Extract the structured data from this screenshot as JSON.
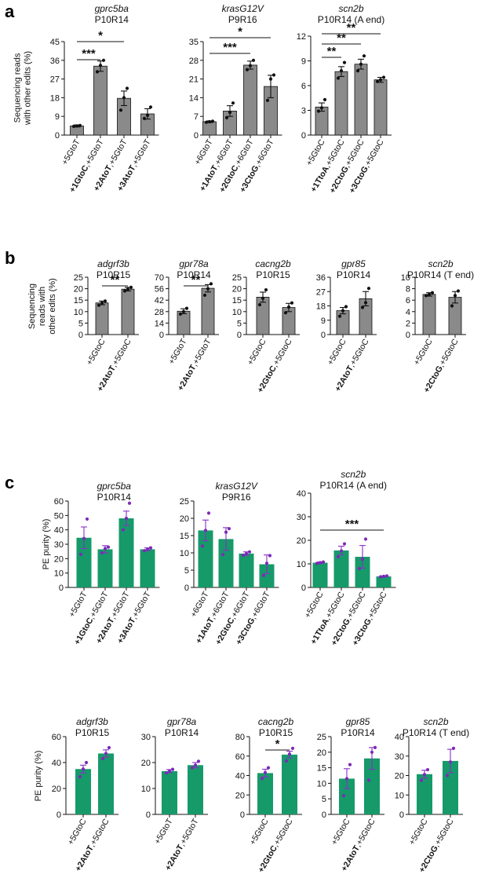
{
  "panels": [
    "a",
    "b",
    "c"
  ],
  "ylabels": {
    "a": [
      "Sequencing reads",
      "with other edits (%)"
    ],
    "b": [
      "Sequencing",
      "reads with",
      "other edits (%)"
    ],
    "c": [
      "PE purity (%)"
    ],
    "c2": [
      "PE purity (%)"
    ]
  },
  "colors": {
    "gray": "#8a8a8a",
    "green": "#169a69",
    "dot": "#111111",
    "purple": "#8a2ec9",
    "green_dot": "#7d2ab8"
  },
  "chart_data": [
    {
      "id": "a1",
      "type": "bar",
      "title": "gprc5ba",
      "subtitle": "P10R14",
      "categories": [
        [
          "+5GtoT",
          ""
        ],
        [
          "+1GtoC",
          ",+5GtoT"
        ],
        [
          "+2AtoT",
          ",+5GtoT"
        ],
        [
          "+3AtoT",
          ",+5GtoT"
        ]
      ],
      "values": [
        4.4,
        33.2,
        17.7,
        10.2
      ],
      "errors": [
        0.5,
        2.5,
        3.5,
        2.5
      ],
      "points": [
        [
          4.2,
          4.4,
          4.6
        ],
        [
          30.5,
          33.5,
          36.0
        ],
        [
          12.0,
          18.0,
          22.5
        ],
        [
          8.0,
          9.5,
          13.5
        ]
      ],
      "ylim": [
        0,
        45
      ],
      "yticks": [
        0,
        9,
        18,
        27,
        36,
        45
      ],
      "significance": [
        {
          "from": 0,
          "to": 1,
          "label": "***"
        },
        {
          "from": 0,
          "to": 2,
          "label": "*"
        }
      ]
    },
    {
      "id": "a2",
      "type": "bar",
      "title": "krasG12V",
      "subtitle": "P9R16",
      "categories": [
        [
          "+6GtoT",
          ""
        ],
        [
          "+1AtoT",
          ",+6GtoT"
        ],
        [
          "+2GtoC",
          ",+6GtoT"
        ],
        [
          "+3CtoG",
          ",+6GtoT"
        ]
      ],
      "values": [
        5.0,
        9.0,
        26.2,
        18.2
      ],
      "errors": [
        0.3,
        2.0,
        1.5,
        4.2
      ],
      "points": [
        [
          4.8,
          5.0,
          5.2
        ],
        [
          6.5,
          8.5,
          12.0
        ],
        [
          24.5,
          26.0,
          28.0
        ],
        [
          13.0,
          21.0,
          22.5
        ]
      ],
      "ylim": [
        0,
        35
      ],
      "yticks": [
        0,
        7,
        14,
        21,
        28,
        35
      ],
      "significance": [
        {
          "from": 0,
          "to": 2,
          "label": "***"
        },
        {
          "from": 0,
          "to": 3,
          "label": "*"
        }
      ]
    },
    {
      "id": "a3",
      "type": "bar",
      "title": "scn2b",
      "subtitle": "P10R14 (A end)",
      "categories": [
        [
          "+5GtoC",
          ""
        ],
        [
          "+1TtoA",
          ",+5GtoC"
        ],
        [
          "+2CtoG",
          ",+5GtoC"
        ],
        [
          "+3CtoG",
          ",+5GtoC"
        ]
      ],
      "values": [
        3.4,
        7.7,
        8.6,
        6.7
      ],
      "errors": [
        0.5,
        0.6,
        0.6,
        0.3
      ],
      "points": [
        [
          2.9,
          3.3,
          4.3
        ],
        [
          6.9,
          7.8,
          8.8
        ],
        [
          7.8,
          8.6,
          9.6
        ],
        [
          6.5,
          6.7,
          7.0
        ]
      ],
      "ylim": [
        0,
        12
      ],
      "yticks": [
        0,
        3,
        6,
        9,
        12
      ],
      "significance": [
        {
          "from": 0,
          "to": 1,
          "label": "**"
        },
        {
          "from": 0,
          "to": 2,
          "label": "**"
        },
        {
          "from": 0,
          "to": 3,
          "label": "**"
        }
      ]
    },
    {
      "id": "b1",
      "type": "bar",
      "title": "adgrf3b",
      "subtitle": "P10R15",
      "categories": [
        [
          "+5GtoC",
          ""
        ],
        [
          "+2AtoT",
          ",+5GtoC"
        ]
      ],
      "values": [
        13.8,
        19.8
      ],
      "errors": [
        0.8,
        0.8
      ],
      "points": [
        [
          12.8,
          13.8,
          14.6
        ],
        [
          19.0,
          19.8,
          20.6
        ]
      ],
      "ylim": [
        0,
        25
      ],
      "yticks": [
        0,
        5,
        10,
        15,
        20,
        25
      ],
      "significance": [
        {
          "from": 0,
          "to": 1,
          "label": "**"
        }
      ]
    },
    {
      "id": "b2",
      "type": "bar",
      "title": "gpr78a",
      "subtitle": "P10R14",
      "categories": [
        [
          "+5GtoT",
          ""
        ],
        [
          "+2AtoT",
          ",+5GtoT"
        ]
      ],
      "values": [
        28.5,
        56.5
      ],
      "errors": [
        3.0,
        4.5
      ],
      "points": [
        [
          25.0,
          28.0,
          32.0
        ],
        [
          48.0,
          56.0,
          62.0
        ]
      ],
      "ylim": [
        0,
        70
      ],
      "yticks": [
        0,
        14,
        28,
        42,
        56,
        70
      ],
      "significance": [
        {
          "from": 0,
          "to": 1,
          "label": "**"
        }
      ]
    },
    {
      "id": "b3",
      "type": "bar",
      "title": "cacng2b",
      "subtitle": "P10R15",
      "categories": [
        [
          "+5GtoC",
          ""
        ],
        [
          "+2GtoC",
          ",+5GtoC"
        ]
      ],
      "values": [
        16.3,
        11.8
      ],
      "errors": [
        2.2,
        1.8
      ],
      "points": [
        [
          13.0,
          15.8,
          19.5
        ],
        [
          9.5,
          12.0,
          13.8
        ]
      ],
      "ylim": [
        0,
        25
      ],
      "yticks": [
        0,
        5,
        10,
        15,
        20,
        25
      ],
      "significance": []
    },
    {
      "id": "b4",
      "type": "bar",
      "title": "gpr85",
      "subtitle": "P10R14",
      "categories": [
        [
          "+5GtoC",
          ""
        ],
        [
          "+2AtoT",
          ",+5GtoC"
        ]
      ],
      "values": [
        15.0,
        22.5
      ],
      "errors": [
        2.0,
        4.5
      ],
      "points": [
        [
          11.5,
          15.0,
          17.5
        ],
        [
          17.0,
          20.0,
          29.0
        ]
      ],
      "ylim": [
        0,
        36
      ],
      "yticks": [
        0,
        9,
        18,
        27,
        36
      ],
      "significance": []
    },
    {
      "id": "b5",
      "type": "bar",
      "title": "scn2b",
      "subtitle": "P10R14 (T end)",
      "categories": [
        [
          "+5GtoC",
          ""
        ],
        [
          "+2CtoG",
          ",+5GtoC"
        ]
      ],
      "values": [
        7.0,
        6.5
      ],
      "errors": [
        0.3,
        1.0
      ],
      "points": [
        [
          6.8,
          7.0,
          7.3
        ],
        [
          5.0,
          6.8,
          7.6
        ]
      ],
      "ylim": [
        0,
        10
      ],
      "yticks": [
        0,
        2,
        4,
        6,
        8,
        10
      ],
      "significance": []
    },
    {
      "id": "c1",
      "type": "bar",
      "title": "gprc5ba",
      "subtitle": "P10R14",
      "categories": [
        [
          "+5GtoT",
          ""
        ],
        [
          "+1GtoC",
          ",+5GtoT"
        ],
        [
          "+2AtoT",
          ",+5GtoT"
        ],
        [
          "+3AtoT",
          ",+5GtoT"
        ]
      ],
      "values": [
        34.5,
        26.5,
        48.0,
        26.5
      ],
      "errors": [
        7.5,
        2.5,
        5.0,
        1.0
      ],
      "points": [
        [
          23.0,
          34.0,
          47.5
        ],
        [
          24.0,
          27.0,
          28.0
        ],
        [
          40.0,
          48.0,
          58.5
        ],
        [
          25.5,
          26.5,
          27.5
        ]
      ],
      "ylim": [
        0,
        60
      ],
      "yticks": [
        0,
        10,
        20,
        30,
        40,
        50,
        60
      ],
      "significance": []
    },
    {
      "id": "c2",
      "type": "bar",
      "title": "krasG12V",
      "subtitle": "P9R16",
      "categories": [
        [
          "+6GtoT",
          ""
        ],
        [
          "+1AtoT",
          ",+6GtoT"
        ],
        [
          "+2GtoC",
          ",+6GtoT"
        ],
        [
          "+3CtoG",
          ",+6GtoT"
        ]
      ],
      "values": [
        16.5,
        14.0,
        9.8,
        6.7
      ],
      "errors": [
        3.0,
        3.3,
        0.5,
        2.7
      ],
      "points": [
        [
          12.0,
          16.5,
          21.5
        ],
        [
          9.5,
          16.0,
          17.0
        ],
        [
          9.3,
          9.8,
          10.3
        ],
        [
          3.5,
          7.0,
          9.2
        ]
      ],
      "ylim": [
        0,
        25
      ],
      "yticks": [
        0,
        5,
        10,
        15,
        20,
        25
      ],
      "significance": []
    },
    {
      "id": "c3",
      "type": "bar",
      "title": "scn2b",
      "subtitle": "P10R14 (A end)",
      "categories": [
        [
          "+5GtoC",
          ""
        ],
        [
          "+1TtoA",
          ",+5GtoC"
        ],
        [
          "+2CtoG",
          ",+5GtoC"
        ],
        [
          "+3CtoG",
          ",+5GtoC"
        ]
      ],
      "values": [
        10.5,
        15.7,
        13.0,
        4.7
      ],
      "errors": [
        0.3,
        1.8,
        4.8,
        0.2
      ],
      "points": [
        [
          10.2,
          10.5,
          10.8
        ],
        [
          13.0,
          15.5,
          18.5
        ],
        [
          8.0,
          12.0,
          20.5
        ],
        [
          4.5,
          4.7,
          4.9
        ]
      ],
      "ylim": [
        0,
        40
      ],
      "yticks": [
        0,
        10,
        20,
        30,
        40
      ],
      "significance": [
        {
          "from": 0,
          "to": 3,
          "label": "***"
        }
      ]
    },
    {
      "id": "c4",
      "type": "bar",
      "title": "adgrf3b",
      "subtitle": "P10R15",
      "categories": [
        [
          "+5GtoC",
          ""
        ],
        [
          "+2AtoT",
          ",+5GtoC"
        ]
      ],
      "values": [
        35.0,
        47.0
      ],
      "errors": [
        3.0,
        2.8
      ],
      "points": [
        [
          29.0,
          35.0,
          40.0
        ],
        [
          43.0,
          47.0,
          51.5
        ]
      ],
      "ylim": [
        0,
        60
      ],
      "yticks": [
        0,
        20,
        40,
        60
      ],
      "significance": []
    },
    {
      "id": "c5",
      "type": "bar",
      "title": "gpr78a",
      "subtitle": "P10R14",
      "categories": [
        [
          "+5GtoT",
          ""
        ],
        [
          "+2AtoT",
          ",+5GtoT"
        ]
      ],
      "values": [
        16.7,
        19.0
      ],
      "errors": [
        0.6,
        1.0
      ],
      "points": [
        [
          16.0,
          16.7,
          17.4
        ],
        [
          18.0,
          19.0,
          20.5
        ]
      ],
      "ylim": [
        0,
        30
      ],
      "yticks": [
        0,
        10,
        20,
        30
      ],
      "significance": []
    },
    {
      "id": "c6",
      "type": "bar",
      "title": "cacng2b",
      "subtitle": "P10R15",
      "categories": [
        [
          "+5GtoC",
          ""
        ],
        [
          "+2GtoC",
          ",+5GtoC"
        ]
      ],
      "values": [
        42.5,
        61.5
      ],
      "errors": [
        4.0,
        3.5
      ],
      "points": [
        [
          37.0,
          43.0,
          48.0
        ],
        [
          55.0,
          62.0,
          68.0
        ]
      ],
      "ylim": [
        0,
        80
      ],
      "yticks": [
        0,
        20,
        40,
        60,
        80
      ],
      "significance": [
        {
          "from": 0,
          "to": 1,
          "label": "*"
        }
      ]
    },
    {
      "id": "c7",
      "type": "bar",
      "title": "gpr85",
      "subtitle": "P10R14",
      "categories": [
        [
          "+5GtoC",
          ""
        ],
        [
          "+2AtoT",
          ",+5GtoC"
        ]
      ],
      "values": [
        11.5,
        18.0
      ],
      "errors": [
        3.2,
        3.5
      ],
      "points": [
        [
          6.0,
          11.5,
          16.0
        ],
        [
          11.0,
          20.0,
          21.5
        ]
      ],
      "ylim": [
        0,
        25
      ],
      "yticks": [
        0,
        5,
        10,
        15,
        20,
        25
      ],
      "significance": []
    },
    {
      "id": "c8",
      "type": "bar",
      "title": "scn2b",
      "subtitle": "P10R14 (T end)",
      "categories": [
        [
          "+5GtoC",
          ""
        ],
        [
          "+2CtoG",
          ",+5GtoC"
        ]
      ],
      "values": [
        20.7,
        27.5
      ],
      "errors": [
        2.0,
        6.0
      ],
      "points": [
        [
          17.5,
          20.5,
          23.0
        ],
        [
          20.0,
          27.0,
          34.0
        ]
      ],
      "ylim": [
        0,
        40
      ],
      "yticks": [
        0,
        10,
        20,
        30,
        40
      ],
      "significance": []
    }
  ]
}
